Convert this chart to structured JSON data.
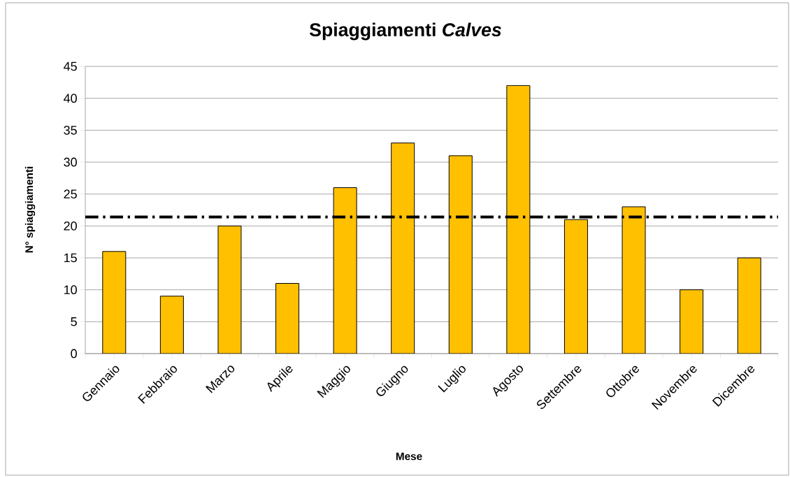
{
  "chart_data": {
    "type": "bar",
    "title": "Spiaggiamenti *Calves*",
    "xlabel": "Mese",
    "ylabel": "N° spiaggiamenti",
    "categories": [
      "Gennaio",
      "Febbraio",
      "Marzo",
      "Aprile",
      "Maggio",
      "Giugno",
      "Luglio",
      "Agosto",
      "Settembre",
      "Ottobre",
      "Novembre",
      "Dicembre"
    ],
    "values": [
      16,
      9,
      20,
      11,
      26,
      33,
      31,
      42,
      21,
      23,
      10,
      15
    ],
    "color": "#ffc000",
    "ylim": [
      0,
      45
    ],
    "yticks": [
      0,
      5,
      10,
      15,
      20,
      25,
      30,
      35,
      40,
      45
    ],
    "grid": "y",
    "ref_lines": [
      {
        "axis": "y",
        "value": 21.4,
        "color": "#000000",
        "line_style": "dashdot"
      }
    ]
  }
}
